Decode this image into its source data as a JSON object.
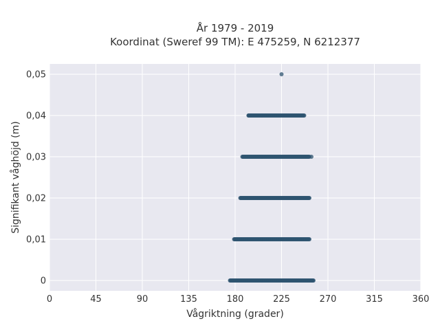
{
  "chart_data": {
    "type": "scatter",
    "title_line1": "År 1979 - 2019",
    "title_line2": "Koordinat (Sweref 99 TM): E 475259, N 6212377",
    "xlabel": "Vågriktning (grader)",
    "ylabel": "Signifikant våghöjd (m)",
    "xlim": [
      0,
      360
    ],
    "ylim": [
      -0.0025,
      0.0525
    ],
    "x_ticks": [
      0,
      45,
      90,
      135,
      180,
      225,
      270,
      315,
      360
    ],
    "x_tick_labels": [
      "0",
      "45",
      "90",
      "135",
      "180",
      "225",
      "270",
      "315",
      "360"
    ],
    "y_ticks": [
      0,
      0.01,
      0.02,
      0.03,
      0.04,
      0.05
    ],
    "y_tick_labels": [
      "0",
      "0,01",
      "0,02",
      "0,03",
      "0,04",
      "0,05"
    ],
    "grid": true,
    "marker_color": "#2f5470",
    "plot_background": "#e8e8f0",
    "bands": [
      {
        "y": 0.0,
        "x_min": 175,
        "x_max": 256
      },
      {
        "y": 0.01,
        "x_min": 179,
        "x_max": 252
      },
      {
        "y": 0.02,
        "x_min": 185,
        "x_max": 252
      },
      {
        "y": 0.03,
        "x_min": 187,
        "x_max": 252
      },
      {
        "y": 0.04,
        "x_min": 193,
        "x_max": 247
      }
    ],
    "isolated_points": [
      {
        "x": 225,
        "y": 0.05
      },
      {
        "x": 193,
        "y": 0.04
      },
      {
        "x": 254,
        "y": 0.03
      }
    ]
  }
}
